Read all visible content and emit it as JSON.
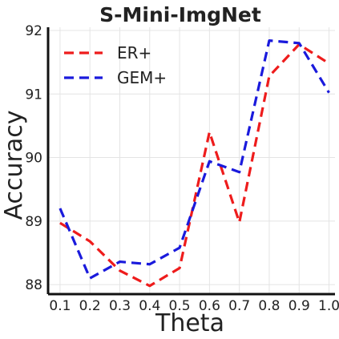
{
  "chart_data": {
    "type": "line",
    "title": "S-Mini-ImgNet",
    "xlabel": "Theta",
    "ylabel": "Accuracy",
    "x": [
      0.1,
      0.2,
      0.3,
      0.4,
      0.5,
      0.6,
      0.7,
      0.8,
      0.9,
      1.0
    ],
    "x_tick_labels": [
      "0.1",
      "0.2",
      "0.3",
      "0.4",
      "0.5",
      "0.6",
      "0.7",
      "0.8",
      "0.9",
      "1.0"
    ],
    "y_ticks": [
      88,
      89,
      90,
      91,
      92
    ],
    "y_tick_labels": [
      "88",
      "89",
      "90",
      "91",
      "92"
    ],
    "xlim": [
      0.06,
      1.02
    ],
    "ylim": [
      87.85,
      92.05
    ],
    "grid": true,
    "legend_position": "top-left",
    "series": [
      {
        "name": "ER+",
        "color": "#ee1c1c",
        "values": [
          88.97,
          88.68,
          88.22,
          87.98,
          88.26,
          90.4,
          88.98,
          91.28,
          91.78,
          91.48
        ]
      },
      {
        "name": "GEM+",
        "color": "#1a1adc",
        "values": [
          89.2,
          88.1,
          88.36,
          88.32,
          88.58,
          89.94,
          89.77,
          91.84,
          91.8,
          91.02
        ]
      }
    ]
  }
}
